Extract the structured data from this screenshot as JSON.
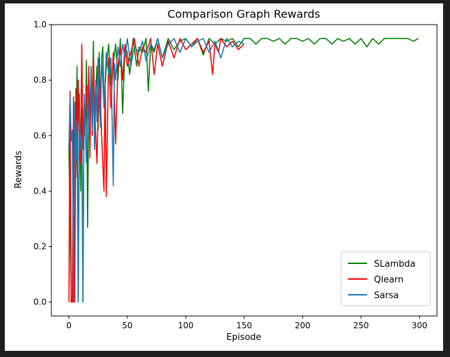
{
  "chart_data": {
    "type": "line",
    "title": "Comparison Graph Rewards",
    "xlabel": "Episode",
    "ylabel": "Rewards",
    "xlim": [
      -15,
      315
    ],
    "ylim": [
      -0.05,
      1.0
    ],
    "xticks": [
      0,
      50,
      100,
      150,
      200,
      250,
      300
    ],
    "yticks": [
      0.0,
      0.2,
      0.4,
      0.6,
      0.8,
      1.0
    ],
    "xtick_labels": [
      "0",
      "50",
      "100",
      "150",
      "200",
      "250",
      "300"
    ],
    "ytick_labels": [
      "0.0",
      "0.2",
      "0.4",
      "0.6",
      "0.8",
      "1.0"
    ],
    "grid": false,
    "legend_position": "lower-right",
    "series": [
      {
        "name": "SLambda",
        "color": "#008000",
        "x": [
          0,
          2,
          4,
          6,
          7,
          8,
          9,
          10,
          11,
          12,
          13,
          14,
          15,
          16,
          17,
          18,
          19,
          20,
          21,
          22,
          23,
          24,
          25,
          26,
          27,
          28,
          29,
          30,
          32,
          34,
          36,
          38,
          40,
          42,
          44,
          46,
          48,
          50,
          52,
          55,
          58,
          60,
          63,
          66,
          68,
          70,
          73,
          76,
          80,
          85,
          90,
          95,
          100,
          105,
          110,
          115,
          120,
          125,
          130,
          135,
          140,
          145,
          150,
          155,
          160,
          165,
          170,
          175,
          180,
          185,
          190,
          195,
          200,
          205,
          210,
          215,
          220,
          225,
          230,
          235,
          240,
          245,
          250,
          255,
          260,
          265,
          270,
          275,
          280,
          285,
          290,
          295,
          299
        ],
        "y": [
          0.57,
          0.0,
          0.0,
          0.55,
          0.85,
          0.0,
          0.75,
          0.4,
          0.7,
          0.0,
          0.72,
          0.6,
          0.87,
          0.27,
          0.75,
          0.6,
          0.82,
          0.7,
          0.94,
          0.57,
          0.75,
          0.85,
          0.62,
          0.9,
          0.7,
          0.88,
          0.92,
          0.7,
          0.85,
          0.93,
          0.78,
          0.86,
          0.93,
          0.8,
          0.95,
          0.68,
          0.92,
          0.9,
          0.82,
          0.95,
          0.85,
          0.92,
          0.9,
          0.95,
          0.76,
          0.93,
          0.9,
          0.95,
          0.88,
          0.95,
          0.91,
          0.94,
          0.95,
          0.92,
          0.95,
          0.89,
          0.95,
          0.93,
          0.95,
          0.94,
          0.95,
          0.92,
          0.95,
          0.95,
          0.93,
          0.95,
          0.95,
          0.94,
          0.95,
          0.93,
          0.95,
          0.95,
          0.94,
          0.95,
          0.93,
          0.95,
          0.95,
          0.93,
          0.95,
          0.94,
          0.95,
          0.93,
          0.95,
          0.92,
          0.95,
          0.93,
          0.95,
          0.95,
          0.95,
          0.95,
          0.95,
          0.94,
          0.95
        ]
      },
      {
        "name": "Qlearn",
        "color": "#ff0000",
        "x": [
          0,
          1,
          2,
          3,
          4,
          5,
          6,
          7,
          8,
          9,
          10,
          11,
          12,
          13,
          14,
          15,
          16,
          17,
          18,
          19,
          20,
          21,
          22,
          24,
          26,
          28,
          30,
          31,
          32,
          34,
          36,
          38,
          40,
          42,
          44,
          46,
          48,
          50,
          53,
          56,
          60,
          63,
          66,
          70,
          73,
          76,
          80,
          85,
          90,
          95,
          100,
          105,
          110,
          115,
          120,
          123,
          125,
          128,
          130,
          135,
          140,
          145,
          150
        ],
        "y": [
          0.0,
          0.76,
          0.0,
          0.0,
          0.74,
          0.0,
          0.77,
          0.45,
          0.8,
          0.55,
          0.5,
          0.93,
          0.55,
          0.72,
          0.6,
          0.78,
          0.68,
          0.85,
          0.52,
          0.84,
          0.6,
          0.88,
          0.7,
          0.5,
          0.85,
          0.6,
          0.4,
          0.8,
          0.38,
          0.88,
          0.7,
          0.9,
          0.57,
          0.85,
          0.92,
          0.8,
          0.93,
          0.85,
          0.9,
          0.95,
          0.85,
          0.92,
          0.9,
          0.95,
          0.82,
          0.93,
          0.85,
          0.94,
          0.88,
          0.95,
          0.91,
          0.93,
          0.95,
          0.9,
          0.94,
          0.82,
          0.93,
          0.9,
          0.95,
          0.92,
          0.94,
          0.91,
          0.93
        ]
      },
      {
        "name": "Sarsa",
        "color": "#1f77b4",
        "x": [
          0,
          1,
          2,
          3,
          4,
          5,
          6,
          7,
          8,
          9,
          10,
          11,
          12,
          13,
          14,
          15,
          16,
          17,
          18,
          19,
          20,
          21,
          22,
          23,
          24,
          25,
          26,
          27,
          28,
          29,
          30,
          32,
          34,
          36,
          38,
          39,
          40,
          42,
          44,
          46,
          48,
          50,
          53,
          56,
          60,
          63,
          66,
          70,
          73,
          76,
          80,
          85,
          90,
          95,
          100,
          105,
          110,
          115,
          120,
          125,
          130,
          135,
          140,
          145,
          150
        ],
        "y": [
          0.55,
          0.74,
          0.58,
          0.62,
          0.0,
          0.72,
          0.5,
          0.65,
          0.0,
          0.7,
          0.55,
          0.6,
          0.0,
          0.75,
          0.62,
          0.5,
          0.78,
          0.6,
          0.7,
          0.85,
          0.62,
          0.78,
          0.55,
          0.8,
          0.65,
          0.88,
          0.72,
          0.63,
          0.88,
          0.8,
          0.7,
          0.9,
          0.82,
          0.88,
          0.42,
          0.86,
          0.8,
          0.92,
          0.85,
          0.93,
          0.88,
          0.95,
          0.85,
          0.92,
          0.9,
          0.94,
          0.87,
          0.93,
          0.91,
          0.95,
          0.88,
          0.93,
          0.95,
          0.9,
          0.95,
          0.92,
          0.94,
          0.95,
          0.9,
          0.94,
          0.88,
          0.95,
          0.92,
          0.94,
          0.93
        ]
      }
    ]
  }
}
